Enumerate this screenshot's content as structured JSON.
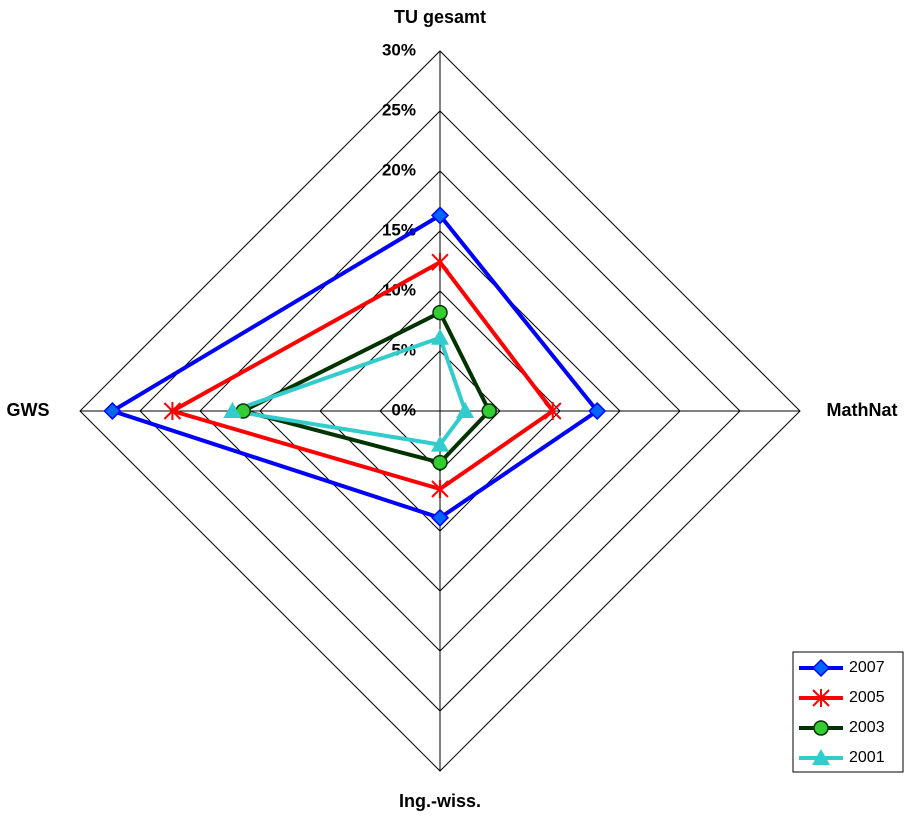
{
  "chart_data": {
    "type": "radar",
    "categories": [
      "TU gesamt",
      "MathNat",
      "Ing.-wiss.",
      "GWS"
    ],
    "rlim": [
      0,
      30
    ],
    "rticks": [
      {
        "value": 0,
        "label": "0%"
      },
      {
        "value": 5,
        "label": "5%"
      },
      {
        "value": 10,
        "label": "10%"
      },
      {
        "value": 15,
        "label": "15%"
      },
      {
        "value": 20,
        "label": "20%"
      },
      {
        "value": 25,
        "label": "25%"
      },
      {
        "value": 30,
        "label": "30%"
      }
    ],
    "grid": true,
    "legend": "bottom-right",
    "series": [
      {
        "name": "2007",
        "color": "#0000ff",
        "marker": "diamond",
        "marker_color": "#0066ff",
        "values": [
          16.3,
          13.1,
          8.9,
          27.3
        ]
      },
      {
        "name": "2005",
        "color": "#ff0000",
        "marker": "asterisk",
        "marker_color": "#ff0000",
        "values": [
          12.4,
          9.4,
          6.5,
          22.3
        ]
      },
      {
        "name": "2003",
        "color": "#003300",
        "marker": "circle",
        "marker_color": "#33cc33",
        "values": [
          8.2,
          4.1,
          4.3,
          16.4
        ]
      },
      {
        "name": "2001",
        "color": "#33cccc",
        "marker": "triangle",
        "marker_color": "#33cccc",
        "values": [
          6.1,
          2.1,
          2.8,
          17.3
        ]
      }
    ]
  }
}
